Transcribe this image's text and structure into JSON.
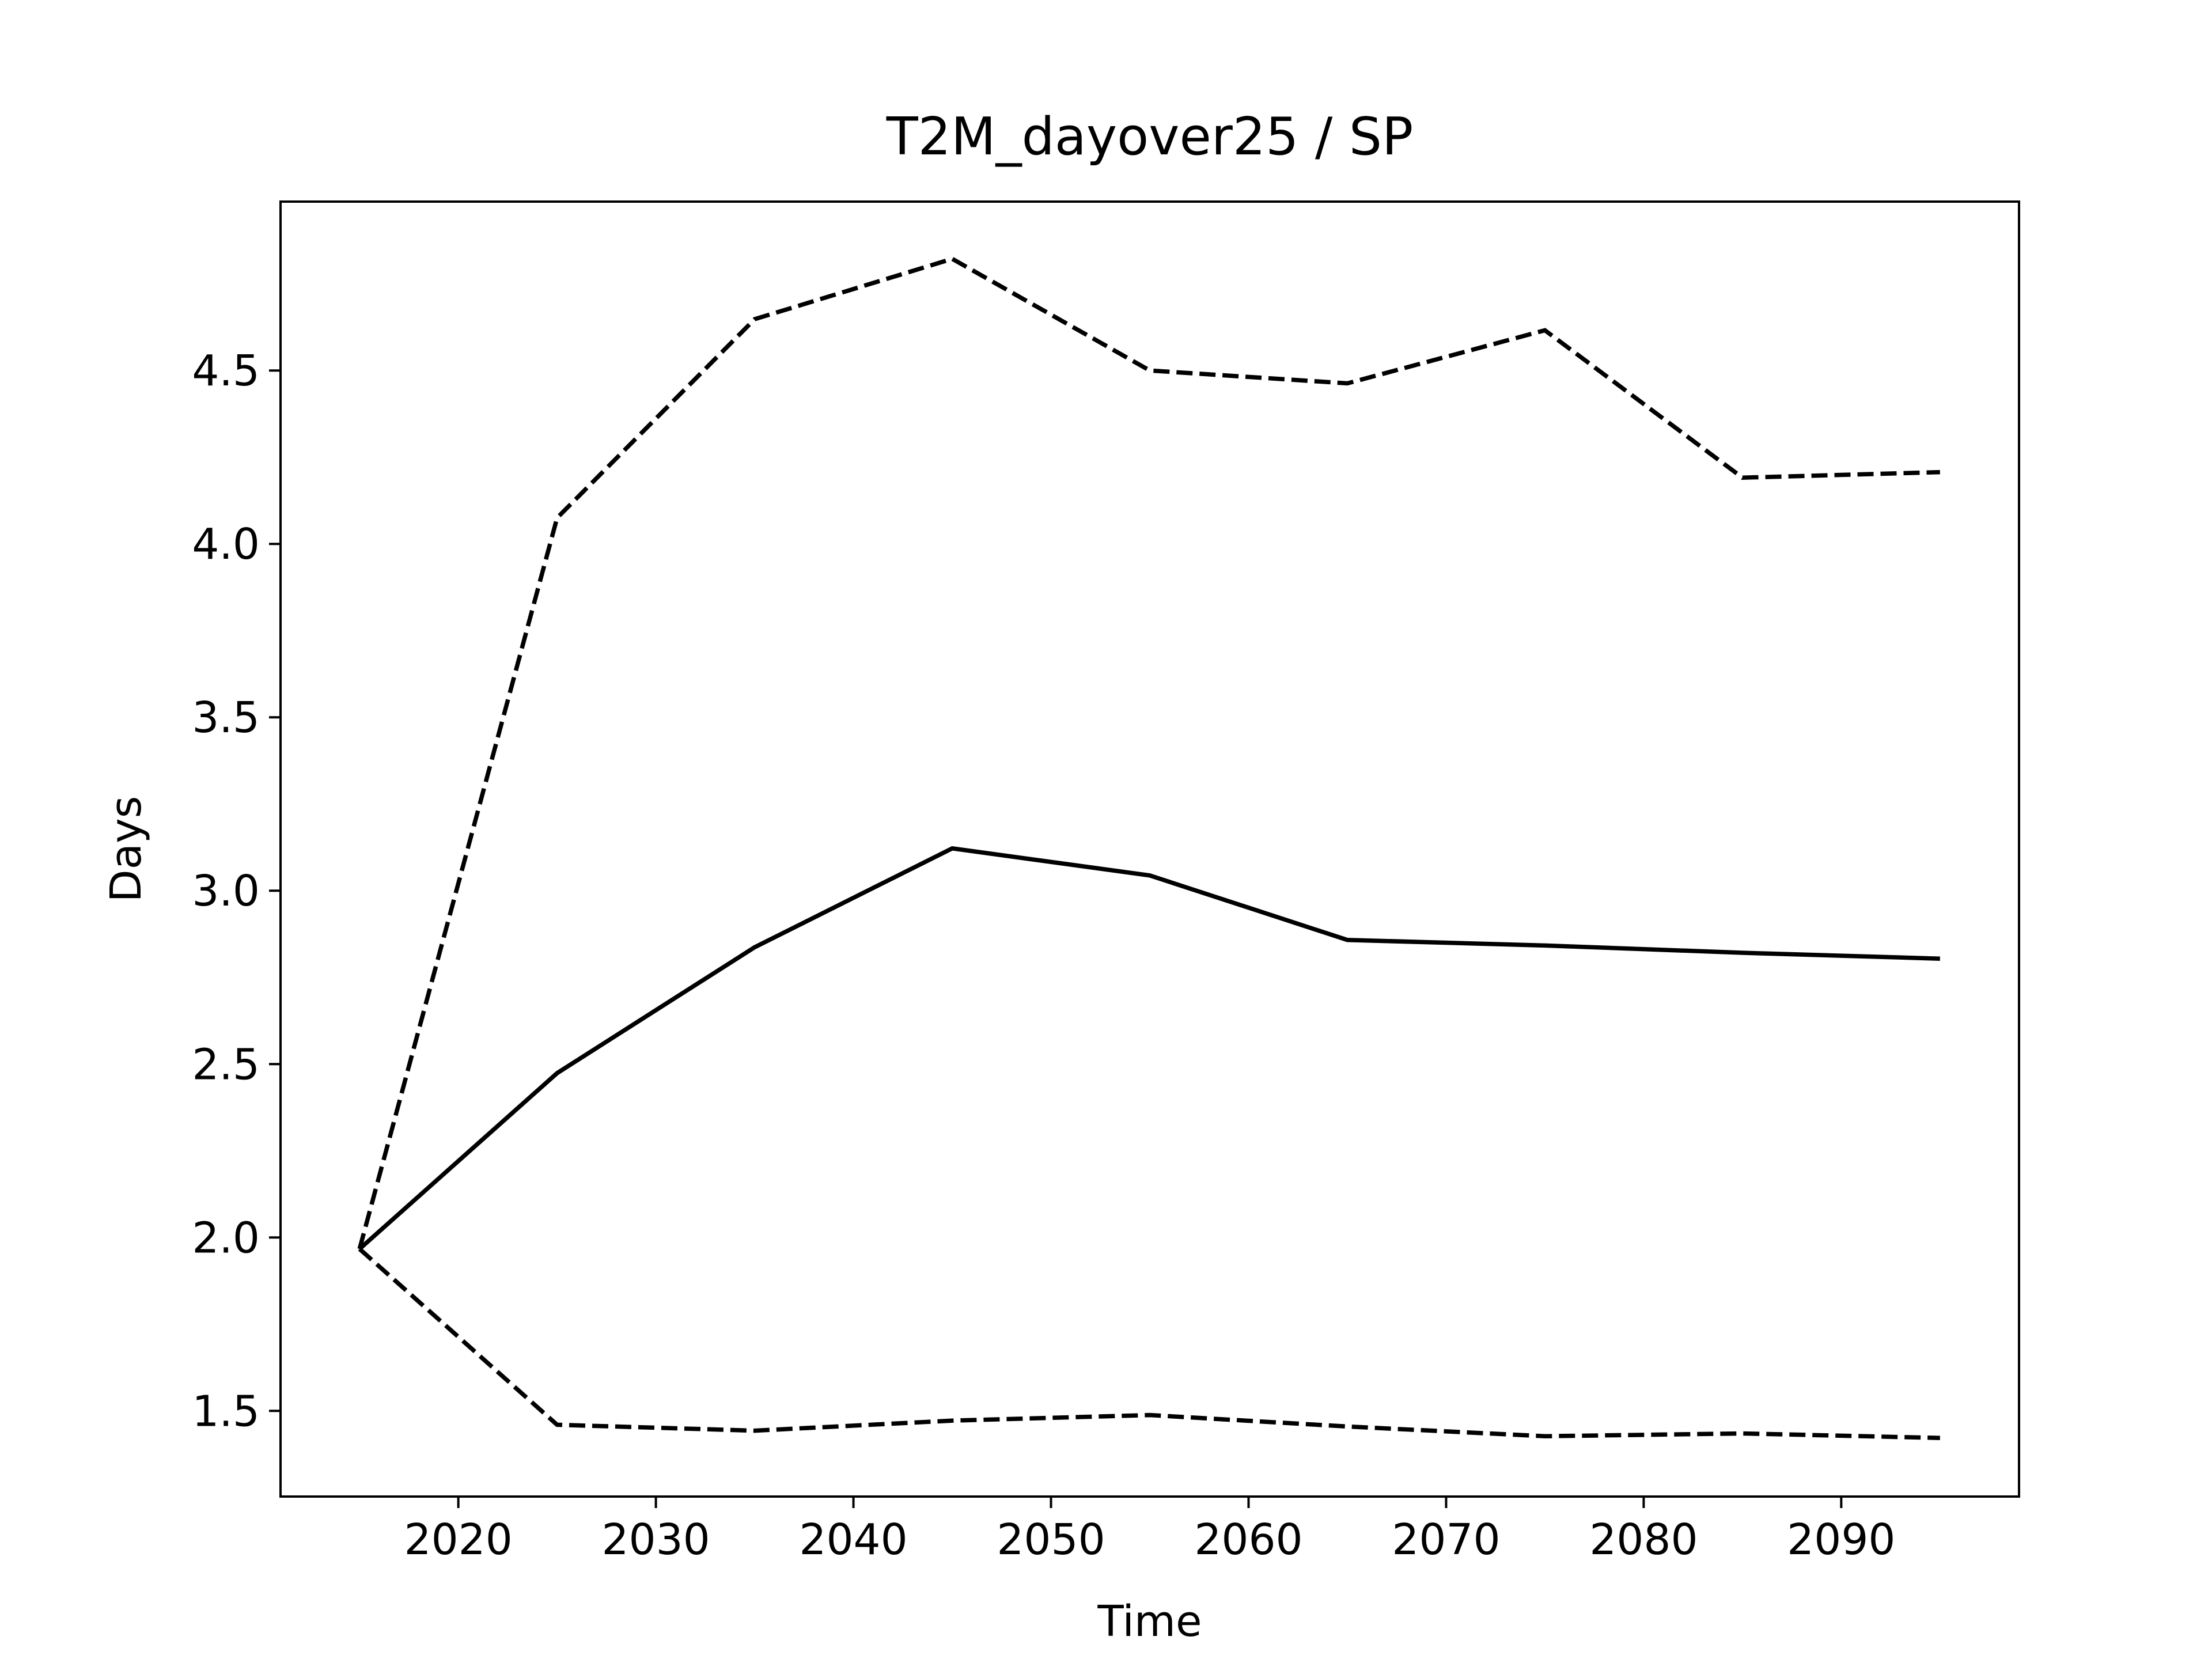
{
  "chart_data": {
    "type": "line",
    "title": "T2M_dayover25 / SP",
    "xlabel": "Time",
    "ylabel": "Days",
    "x": [
      2015,
      2025,
      2035,
      2045,
      2055,
      2065,
      2075,
      2085,
      2095
    ],
    "series": [
      {
        "color": "#000000",
        "linestyle": "solid",
        "values": [
          1.967,
          2.474,
          2.837,
          3.122,
          3.044,
          2.858,
          2.842,
          2.821,
          2.804
        ]
      },
      {
        "color": "#000000",
        "linestyle": "dashed",
        "values": [
          1.967,
          4.075,
          4.648,
          4.822,
          4.5,
          4.463,
          4.616,
          4.191,
          4.207
        ]
      },
      {
        "color": "#000000",
        "linestyle": "dashed",
        "values": [
          1.967,
          1.46,
          1.443,
          1.472,
          1.488,
          1.455,
          1.427,
          1.435,
          1.422
        ]
      }
    ],
    "xlim": [
      2011,
      2099
    ],
    "ylim": [
      1.253,
      4.987
    ],
    "xticks": [
      2020,
      2030,
      2040,
      2050,
      2060,
      2070,
      2080,
      2090
    ],
    "yticks": [
      1.5,
      {
        "value": 2,
        "label": "2.0"
      },
      2.5,
      {
        "value": 3,
        "label": "3.0"
      },
      3.5,
      {
        "value": 4,
        "label": "4.0"
      },
      4.5
    ],
    "grid": false
  }
}
